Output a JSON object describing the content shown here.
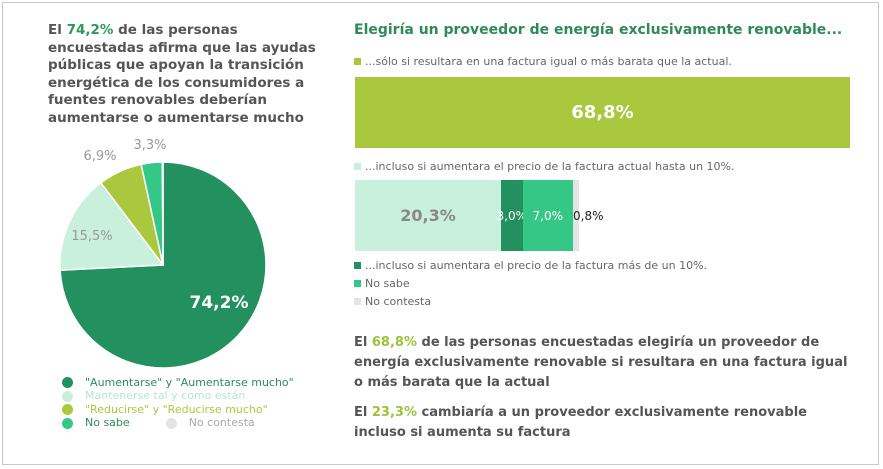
{
  "intro": {
    "pre": "El ",
    "highlight": "74,2%",
    "post": " de las personas encuestadas afirma que las ayudas públicas que apoyan la transición energética de los consumidores a fuentes renovables deberían aumentarse o aumentarse mucho"
  },
  "chart_data": [
    {
      "type": "pie",
      "slices": [
        {
          "label": "\"Aumentarse\" y \"Aumentarse mucho\"",
          "value": 74.2,
          "text": "74,2%",
          "color": "#22905f"
        },
        {
          "label": "Mantenerse tal y como están",
          "value": 15.5,
          "text": "15,5%",
          "color": "#c9efdd"
        },
        {
          "label": "\"Reducirse\" y \"Reducirse mucho\"",
          "value": 6.9,
          "text": "6,9%",
          "color": "#a9c83d"
        },
        {
          "label": "No sabe",
          "value": 3.3,
          "text": "3,3%",
          "color": "#35c785"
        },
        {
          "label": "No contesta",
          "value": 0.1,
          "text": "",
          "color": "#e4e4e4"
        }
      ]
    },
    {
      "type": "bar",
      "title": "Elegiría un proveedor de energía exclusivamente renovable...",
      "bars": [
        {
          "segments": [
            {
              "label": "...sólo si resultara en una factura igual o más barata que la actual.",
              "value": 68.8,
              "text": "68,8%",
              "color": "#a9c83d"
            }
          ]
        },
        {
          "segments": [
            {
              "label": "...incluso si aumentara el precio de la factura actual hasta un 10%.",
              "value": 20.3,
              "text": "20,3%",
              "color": "#c9efdd"
            },
            {
              "label": "...incluso si aumentara el precio de la factura más de un 10%.",
              "value": 3.0,
              "text": "3,0%",
              "color": "#22905f"
            },
            {
              "label": "No sabe",
              "value": 7.0,
              "text": "7,0%",
              "color": "#35c785"
            },
            {
              "label": "No contesta",
              "value": 0.8,
              "text": "0,8%",
              "color": "#e4e4e4"
            }
          ]
        }
      ]
    }
  ],
  "notes": [
    {
      "pre": "El ",
      "highlight": "68,8%",
      "post": " de las personas encuestadas elegiría un proveedor de energía exclusivamente renovable si resultara en una factura igual o más barata que la actual"
    },
    {
      "pre": "El ",
      "highlight": "23,3%",
      "post": " cambiaría a un proveedor exclusivamente renovable incluso si aumenta su factura"
    }
  ]
}
